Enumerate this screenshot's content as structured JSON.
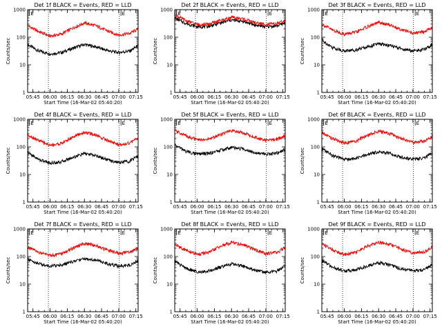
{
  "figure": {
    "background": "#ffffff",
    "line_colors": {
      "events": "#000000",
      "lld": "#ff0000"
    }
  },
  "chart_data": [
    {
      "type": "line",
      "title": "Det 1f BLACK = Events, RED = LLD",
      "xlabel": "Start Time (16-Mar-02 05:40:20)",
      "ylabel": "Counts/sec",
      "yscale": "log",
      "ylim": [
        1,
        1000
      ],
      "yticks": [
        "1",
        "10",
        "100",
        "1000"
      ],
      "xlim": [
        "05:40:20",
        "07:17:00"
      ],
      "xticks": [
        "05:45",
        "06:00",
        "06:15",
        "06:30",
        "06:45",
        "07:00",
        "07:15"
      ],
      "vlines": [
        "05:58:30",
        "07:00:30"
      ],
      "markers": [
        {
          "time": "05:42:00",
          "label": "E"
        },
        {
          "time": "07:02:00",
          "label": "E"
        }
      ],
      "series": [
        {
          "name": "Events",
          "color": "#000000",
          "x": [
            "05:40",
            "05:50",
            "06:00",
            "06:10",
            "06:20",
            "06:30",
            "06:40",
            "06:50",
            "07:00",
            "07:10",
            "07:17"
          ],
          "y": [
            55,
            32,
            25,
            28,
            40,
            55,
            45,
            33,
            28,
            32,
            50
          ]
        },
        {
          "name": "LLD",
          "color": "#ff0000",
          "x": [
            "05:40",
            "05:50",
            "06:00",
            "06:10",
            "06:20",
            "06:30",
            "06:40",
            "06:50",
            "07:00",
            "07:10",
            "07:17"
          ],
          "y": [
            270,
            160,
            110,
            130,
            220,
            330,
            260,
            170,
            120,
            140,
            200
          ]
        }
      ]
    },
    {
      "type": "line",
      "title": "Det 2f BLACK = Events, RED = LLD",
      "xlabel": "Start Time (16-Mar-02 05:40:20)",
      "ylabel": "Counts/sec",
      "yscale": "log",
      "ylim": [
        1,
        1000
      ],
      "yticks": [
        "1",
        "10",
        "100",
        "1000"
      ],
      "xlim": [
        "05:40:20",
        "07:17:00"
      ],
      "xticks": [
        "05:45",
        "06:00",
        "06:15",
        "06:30",
        "06:45",
        "07:00",
        "07:15"
      ],
      "vlines": [
        "05:58:30",
        "07:00:30"
      ],
      "markers": [
        {
          "time": "05:42:00",
          "label": "E"
        },
        {
          "time": "07:02:00",
          "label": "E"
        }
      ],
      "series": [
        {
          "name": "Events",
          "color": "#000000",
          "x": [
            "05:40",
            "05:50",
            "06:00",
            "06:10",
            "06:20",
            "06:30",
            "06:40",
            "06:50",
            "07:00",
            "07:10",
            "07:17"
          ],
          "y": [
            500,
            320,
            240,
            250,
            330,
            420,
            380,
            280,
            240,
            260,
            330
          ]
        },
        {
          "name": "LLD",
          "color": "#ff0000",
          "x": [
            "05:40",
            "05:50",
            "06:00",
            "06:10",
            "06:20",
            "06:30",
            "06:40",
            "06:50",
            "07:00",
            "07:10",
            "07:17"
          ],
          "y": [
            650,
            400,
            290,
            300,
            400,
            520,
            470,
            340,
            290,
            310,
            400
          ]
        }
      ]
    },
    {
      "type": "line",
      "title": "Det 3f BLACK = Events, RED = LLD",
      "xlabel": "Start Time (16-Mar-02 05:40:20)",
      "ylabel": "Counts/sec",
      "yscale": "log",
      "ylim": [
        1,
        1000
      ],
      "yticks": [
        "1",
        "10",
        "100",
        "1000"
      ],
      "xlim": [
        "05:40:20",
        "07:17:00"
      ],
      "xticks": [
        "05:45",
        "06:00",
        "06:15",
        "06:30",
        "06:45",
        "07:00",
        "07:15"
      ],
      "vlines": [
        "05:58:30",
        "07:00:30"
      ],
      "markers": [
        {
          "time": "05:42:00",
          "label": "E"
        },
        {
          "time": "07:02:00",
          "label": "E"
        }
      ],
      "series": [
        {
          "name": "Events",
          "color": "#000000",
          "x": [
            "05:40",
            "05:50",
            "06:00",
            "06:10",
            "06:20",
            "06:30",
            "06:40",
            "06:50",
            "07:00",
            "07:10",
            "07:17"
          ],
          "y": [
            80,
            42,
            32,
            35,
            45,
            58,
            50,
            38,
            32,
            36,
            55
          ]
        },
        {
          "name": "LLD",
          "color": "#ff0000",
          "x": [
            "05:40",
            "05:50",
            "06:00",
            "06:10",
            "06:20",
            "06:30",
            "06:40",
            "06:50",
            "07:00",
            "07:10",
            "07:17"
          ],
          "y": [
            300,
            180,
            130,
            150,
            240,
            340,
            280,
            190,
            140,
            160,
            230
          ]
        }
      ]
    },
    {
      "type": "line",
      "title": "Det 4f BLACK = Events, RED = LLD",
      "xlabel": "Start Time (16-Mar-02 05:40:20)",
      "ylabel": "Counts/sec",
      "yscale": "log",
      "ylim": [
        1,
        1000
      ],
      "yticks": [
        "1",
        "10",
        "100",
        "1000"
      ],
      "xlim": [
        "05:40:20",
        "07:17:00"
      ],
      "xticks": [
        "05:45",
        "06:00",
        "06:15",
        "06:30",
        "06:45",
        "07:00",
        "07:15"
      ],
      "vlines": [
        "05:58:30",
        "07:00:30"
      ],
      "markers": [
        {
          "time": "05:42:00",
          "label": "E"
        },
        {
          "time": "07:02:00",
          "label": "E"
        }
      ],
      "series": [
        {
          "name": "Events",
          "color": "#000000",
          "x": [
            "05:40",
            "05:50",
            "06:00",
            "06:10",
            "06:20",
            "06:30",
            "06:40",
            "06:50",
            "07:00",
            "07:10",
            "07:17"
          ],
          "y": [
            65,
            35,
            26,
            29,
            42,
            58,
            48,
            35,
            27,
            31,
            48
          ]
        },
        {
          "name": "LLD",
          "color": "#ff0000",
          "x": [
            "05:40",
            "05:50",
            "06:00",
            "06:10",
            "06:20",
            "06:30",
            "06:40",
            "06:50",
            "07:00",
            "07:10",
            "07:17"
          ],
          "y": [
            280,
            170,
            115,
            135,
            230,
            340,
            270,
            175,
            120,
            140,
            210
          ]
        }
      ]
    },
    {
      "type": "line",
      "title": "Det 5f BLACK = Events, RED = LLD",
      "xlabel": "Start Time (16-Mar-02 05:40:20)",
      "ylabel": "Counts/sec",
      "yscale": "log",
      "ylim": [
        1,
        1000
      ],
      "yticks": [
        "1",
        "10",
        "100",
        "1000"
      ],
      "xlim": [
        "05:40:20",
        "07:17:00"
      ],
      "xticks": [
        "05:45",
        "06:00",
        "06:15",
        "06:30",
        "06:45",
        "07:00",
        "07:15"
      ],
      "vlines": [
        "05:58:30",
        "07:00:30"
      ],
      "markers": [
        {
          "time": "05:42:00",
          "label": "E"
        },
        {
          "time": "07:02:00",
          "label": "E"
        }
      ],
      "series": [
        {
          "name": "Events",
          "color": "#000000",
          "x": [
            "05:40",
            "05:50",
            "06:00",
            "06:10",
            "06:20",
            "06:30",
            "06:40",
            "06:50",
            "07:00",
            "07:10",
            "07:17"
          ],
          "y": [
            120,
            70,
            55,
            58,
            75,
            95,
            85,
            65,
            55,
            60,
            80
          ]
        },
        {
          "name": "LLD",
          "color": "#ff0000",
          "x": [
            "05:40",
            "05:50",
            "06:00",
            "06:10",
            "06:20",
            "06:30",
            "06:40",
            "06:50",
            "07:00",
            "07:10",
            "07:17"
          ],
          "y": [
            400,
            260,
            180,
            190,
            280,
            380,
            330,
            230,
            175,
            190,
            260
          ]
        }
      ]
    },
    {
      "type": "line",
      "title": "Det 6f BLACK = Events, RED = LLD",
      "xlabel": "Start Time (16-Mar-02 05:40:20)",
      "ylabel": "Counts/sec",
      "yscale": "log",
      "ylim": [
        1,
        1000
      ],
      "yticks": [
        "1",
        "10",
        "100",
        "1000"
      ],
      "xlim": [
        "05:40:20",
        "07:17:00"
      ],
      "xticks": [
        "05:45",
        "06:00",
        "06:15",
        "06:30",
        "06:45",
        "07:00",
        "07:15"
      ],
      "vlines": [
        "05:58:30",
        "07:00:30"
      ],
      "markers": [
        {
          "time": "05:42:00",
          "label": "E"
        },
        {
          "time": "07:02:00",
          "label": "E"
        }
      ],
      "series": [
        {
          "name": "Events",
          "color": "#000000",
          "x": [
            "05:40",
            "05:50",
            "06:00",
            "06:10",
            "06:20",
            "06:30",
            "06:40",
            "06:50",
            "07:00",
            "07:10",
            "07:17"
          ],
          "y": [
            90,
            48,
            35,
            38,
            52,
            68,
            58,
            42,
            36,
            40,
            62
          ]
        },
        {
          "name": "LLD",
          "color": "#ff0000",
          "x": [
            "05:40",
            "05:50",
            "06:00",
            "06:10",
            "06:20",
            "06:30",
            "06:40",
            "06:50",
            "07:00",
            "07:10",
            "07:17"
          ],
          "y": [
            330,
            200,
            140,
            160,
            260,
            370,
            300,
            200,
            145,
            165,
            240
          ]
        }
      ]
    },
    {
      "type": "line",
      "title": "Det 7f BLACK = Events, RED = LLD",
      "xlabel": "Start Time (16-Mar-02 05:40:20)",
      "ylabel": "Counts/sec",
      "yscale": "log",
      "ylim": [
        1,
        1000
      ],
      "yticks": [
        "1",
        "10",
        "100",
        "1000"
      ],
      "xlim": [
        "05:40:20",
        "07:17:00"
      ],
      "xticks": [
        "05:45",
        "06:00",
        "06:15",
        "06:30",
        "06:45",
        "07:00",
        "07:15"
      ],
      "vlines": [
        "05:58:30",
        "07:00:30"
      ],
      "markers": [
        {
          "time": "05:42:00",
          "label": "E"
        },
        {
          "time": "07:02:00",
          "label": "E"
        }
      ],
      "series": [
        {
          "name": "Events",
          "color": "#000000",
          "x": [
            "05:40",
            "05:50",
            "06:00",
            "06:10",
            "06:20",
            "06:30",
            "06:40",
            "06:50",
            "07:00",
            "07:10",
            "07:17"
          ],
          "y": [
            80,
            55,
            45,
            50,
            65,
            85,
            75,
            55,
            45,
            50,
            70
          ]
        },
        {
          "name": "LLD",
          "color": "#ff0000",
          "x": [
            "05:40",
            "05:50",
            "06:00",
            "06:10",
            "06:20",
            "06:30",
            "06:40",
            "06:50",
            "07:00",
            "07:10",
            "07:17"
          ],
          "y": [
            220,
            140,
            110,
            125,
            200,
            300,
            250,
            170,
            130,
            150,
            200
          ]
        }
      ]
    },
    {
      "type": "line",
      "title": "Det 8f BLACK = Events, RED = LLD",
      "xlabel": "Start Time (16-Mar-02 05:40:20)",
      "ylabel": "Counts/sec",
      "yscale": "log",
      "ylim": [
        1,
        1000
      ],
      "yticks": [
        "1",
        "10",
        "100",
        "1000"
      ],
      "xlim": [
        "05:40:20",
        "07:17:00"
      ],
      "xticks": [
        "05:45",
        "06:00",
        "06:15",
        "06:30",
        "06:45",
        "07:00",
        "07:15"
      ],
      "vlines": [
        "05:58:30",
        "07:00:30"
      ],
      "markers": [
        {
          "time": "05:42:00",
          "label": "E"
        },
        {
          "time": "07:02:00",
          "label": "E"
        }
      ],
      "series": [
        {
          "name": "Events",
          "color": "#000000",
          "x": [
            "05:40",
            "05:50",
            "06:00",
            "06:10",
            "06:20",
            "06:30",
            "06:40",
            "06:50",
            "07:00",
            "07:10",
            "07:17"
          ],
          "y": [
            70,
            38,
            28,
            30,
            40,
            55,
            45,
            33,
            27,
            30,
            45
          ]
        },
        {
          "name": "LLD",
          "color": "#ff0000",
          "x": [
            "05:40",
            "05:50",
            "06:00",
            "06:10",
            "06:20",
            "06:30",
            "06:40",
            "06:50",
            "07:00",
            "07:10",
            "07:17"
          ],
          "y": [
            280,
            170,
            120,
            140,
            230,
            330,
            270,
            180,
            125,
            145,
            210
          ]
        }
      ]
    },
    {
      "type": "line",
      "title": "Det 9f BLACK = Events, RED = LLD",
      "xlabel": "Start Time (16-Mar-02 05:40:20)",
      "ylabel": "Counts/sec",
      "yscale": "log",
      "ylim": [
        1,
        1000
      ],
      "yticks": [
        "1",
        "10",
        "100",
        "1000"
      ],
      "xlim": [
        "05:40:20",
        "07:17:00"
      ],
      "xticks": [
        "05:45",
        "06:00",
        "06:15",
        "06:30",
        "06:45",
        "07:00",
        "07:15"
      ],
      "vlines": [
        "05:58:30",
        "07:00:30"
      ],
      "markers": [
        {
          "time": "05:42:00",
          "label": "E"
        },
        {
          "time": "07:02:00",
          "label": "E"
        }
      ],
      "series": [
        {
          "name": "Events",
          "color": "#000000",
          "x": [
            "05:40",
            "05:50",
            "06:00",
            "06:10",
            "06:20",
            "06:30",
            "06:40",
            "06:50",
            "07:00",
            "07:10",
            "07:17"
          ],
          "y": [
            75,
            40,
            30,
            33,
            45,
            60,
            50,
            36,
            30,
            34,
            50
          ]
        },
        {
          "name": "LLD",
          "color": "#ff0000",
          "x": [
            "05:40",
            "05:50",
            "06:00",
            "06:10",
            "06:20",
            "06:30",
            "06:40",
            "06:50",
            "07:00",
            "07:10",
            "07:17"
          ],
          "y": [
            300,
            175,
            120,
            140,
            235,
            335,
            275,
            185,
            130,
            150,
            220
          ]
        }
      ]
    }
  ]
}
